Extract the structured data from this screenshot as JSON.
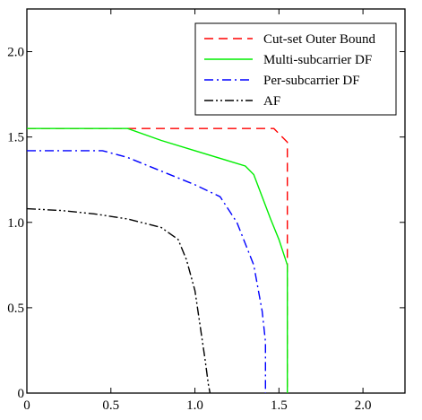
{
  "chart_data": {
    "type": "line",
    "xlabel": "",
    "ylabel": "",
    "xlim": [
      0,
      2.25
    ],
    "ylim": [
      0,
      2.25
    ],
    "x_ticks": [
      "0",
      "0.5",
      "1.0",
      "1.5",
      "2.0"
    ],
    "y_ticks": [
      "0",
      "0.5",
      "1.0",
      "1.5",
      "2.0"
    ],
    "grid": false,
    "legend_position": "top-right",
    "series": [
      {
        "name": "Cut-set Outer Bound",
        "color": "#ff0000",
        "dash": "dashed",
        "x": [
          0,
          1.47,
          1.55,
          1.55
        ],
        "y": [
          1.55,
          1.55,
          1.47,
          0
        ]
      },
      {
        "name": "Multi-subcarrier DF",
        "color": "#00ee00",
        "dash": "solid",
        "x": [
          0,
          0.6,
          0.8,
          1.0,
          1.2,
          1.3,
          1.35,
          1.4,
          1.45,
          1.5,
          1.55,
          1.55
        ],
        "y": [
          1.55,
          1.55,
          1.48,
          1.42,
          1.36,
          1.33,
          1.28,
          1.15,
          1.02,
          0.9,
          0.75,
          0
        ]
      },
      {
        "name": "Per-subcarrier DF",
        "color": "#0000ff",
        "dash": "dashdot",
        "x": [
          0,
          0.45,
          0.6,
          0.8,
          1.0,
          1.15,
          1.25,
          1.35,
          1.4,
          1.42,
          1.42
        ],
        "y": [
          1.42,
          1.42,
          1.38,
          1.3,
          1.22,
          1.15,
          1.0,
          0.75,
          0.48,
          0.3,
          0
        ]
      },
      {
        "name": "AF",
        "color": "#000000",
        "dash": "dashdotdot",
        "x": [
          0,
          0.2,
          0.4,
          0.6,
          0.8,
          0.9,
          0.95,
          1.0,
          1.03,
          1.06,
          1.08,
          1.09
        ],
        "y": [
          1.08,
          1.07,
          1.05,
          1.02,
          0.97,
          0.9,
          0.78,
          0.6,
          0.4,
          0.2,
          0.05,
          0
        ]
      }
    ]
  }
}
